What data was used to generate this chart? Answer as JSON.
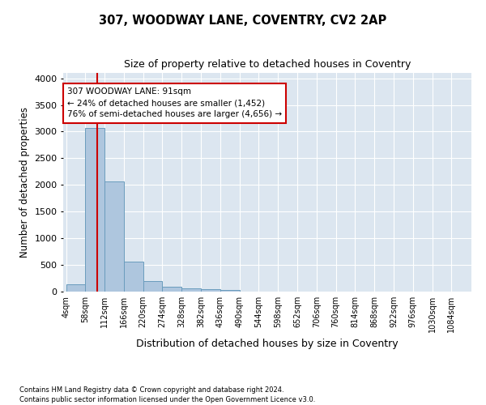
{
  "title": "307, WOODWAY LANE, COVENTRY, CV2 2AP",
  "subtitle": "Size of property relative to detached houses in Coventry",
  "xlabel": "Distribution of detached houses by size in Coventry",
  "ylabel": "Number of detached properties",
  "bin_labels": [
    "4sqm",
    "58sqm",
    "112sqm",
    "166sqm",
    "220sqm",
    "274sqm",
    "328sqm",
    "382sqm",
    "436sqm",
    "490sqm",
    "544sqm",
    "598sqm",
    "652sqm",
    "706sqm",
    "760sqm",
    "814sqm",
    "868sqm",
    "922sqm",
    "976sqm",
    "1030sqm",
    "1084sqm"
  ],
  "bin_edges": [
    4,
    58,
    112,
    166,
    220,
    274,
    328,
    382,
    436,
    490,
    544,
    598,
    652,
    706,
    760,
    814,
    868,
    922,
    976,
    1030,
    1084
  ],
  "bar_heights": [
    130,
    3070,
    2060,
    560,
    200,
    90,
    60,
    40,
    25,
    0,
    0,
    0,
    0,
    0,
    0,
    0,
    0,
    0,
    0,
    0
  ],
  "bar_color": "#aec6de",
  "bar_edge_color": "#6a9cbd",
  "vline_x": 91,
  "vline_color": "#cc0000",
  "annotation_text": "307 WOODWAY LANE: 91sqm\n← 24% of detached houses are smaller (1,452)\n76% of semi-detached houses are larger (4,656) →",
  "annotation_box_color": "#ffffff",
  "annotation_box_edge": "#cc0000",
  "ylim": [
    0,
    4100
  ],
  "yticks": [
    0,
    500,
    1000,
    1500,
    2000,
    2500,
    3000,
    3500,
    4000
  ],
  "background_color": "#dce6f0",
  "grid_color": "#ffffff",
  "footer_line1": "Contains HM Land Registry data © Crown copyright and database right 2024.",
  "footer_line2": "Contains public sector information licensed under the Open Government Licence v3.0."
}
